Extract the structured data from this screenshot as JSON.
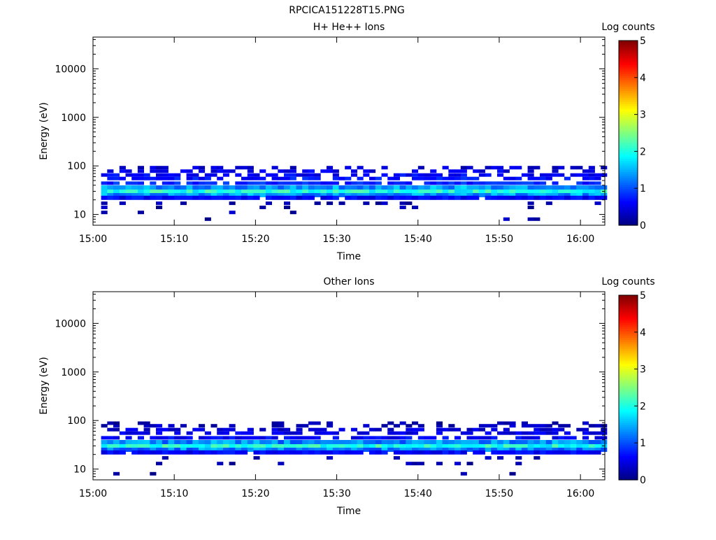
{
  "figure_title": "RPCICA151228T15.PNG",
  "chart_data": [
    {
      "type": "heatmap",
      "title": "H+ He++ Ions",
      "xlabel": "Time",
      "ylabel": "Energy (eV)",
      "x_range": [
        "15:00",
        "16:03"
      ],
      "x_ticks": [
        "15:00",
        "15:10",
        "15:20",
        "15:30",
        "15:40",
        "15:50",
        "16:00"
      ],
      "y_scale": "log",
      "y_range": [
        6,
        45000
      ],
      "y_ticks": [
        "10",
        "100",
        "1000",
        "10000"
      ],
      "colorbar": {
        "label": "Log counts",
        "range": [
          0,
          5
        ],
        "ticks": [
          "0",
          "1",
          "2",
          "3",
          "4",
          "5"
        ]
      },
      "bands": [
        {
          "energy_eV": 30,
          "log_counts": 2.0,
          "coverage": 1.0
        },
        {
          "energy_eV": 25,
          "log_counts": 1.4,
          "coverage": 1.0
        },
        {
          "energy_eV": 36,
          "log_counts": 1.4,
          "coverage": 1.0
        },
        {
          "energy_eV": 22,
          "log_counts": 0.6,
          "coverage": 0.95
        },
        {
          "energy_eV": 44,
          "log_counts": 0.8,
          "coverage": 0.85
        },
        {
          "energy_eV": 55,
          "log_counts": 0.7,
          "coverage": 0.7
        },
        {
          "energy_eV": 65,
          "log_counts": 0.6,
          "coverage": 0.6
        },
        {
          "energy_eV": 78,
          "log_counts": 0.5,
          "coverage": 0.5
        },
        {
          "energy_eV": 92,
          "log_counts": 0.4,
          "coverage": 0.4
        },
        {
          "energy_eV": 17,
          "log_counts": 0.2,
          "coverage": 0.18
        },
        {
          "energy_eV": 14,
          "log_counts": 0.2,
          "coverage": 0.12
        },
        {
          "energy_eV": 11,
          "log_counts": 0.2,
          "coverage": 0.08
        },
        {
          "energy_eV": 8,
          "log_counts": 0.2,
          "coverage": 0.05
        }
      ]
    },
    {
      "type": "heatmap",
      "title": "Other Ions",
      "xlabel": "Time",
      "ylabel": "Energy (eV)",
      "x_range": [
        "15:00",
        "16:03"
      ],
      "x_ticks": [
        "15:00",
        "15:10",
        "15:20",
        "15:30",
        "15:40",
        "15:50",
        "16:00"
      ],
      "y_scale": "log",
      "y_range": [
        6,
        45000
      ],
      "y_ticks": [
        "10",
        "100",
        "1000",
        "10000"
      ],
      "colorbar": {
        "label": "Log counts",
        "range": [
          0,
          5
        ],
        "ticks": [
          "0",
          "1",
          "2",
          "3",
          "4",
          "5"
        ]
      },
      "bands": [
        {
          "energy_eV": 30,
          "log_counts": 2.0,
          "coverage": 1.0
        },
        {
          "energy_eV": 25,
          "log_counts": 1.3,
          "coverage": 1.0
        },
        {
          "energy_eV": 36,
          "log_counts": 1.3,
          "coverage": 1.0
        },
        {
          "energy_eV": 22,
          "log_counts": 0.6,
          "coverage": 0.9
        },
        {
          "energy_eV": 44,
          "log_counts": 0.6,
          "coverage": 0.75
        },
        {
          "energy_eV": 55,
          "log_counts": 0.5,
          "coverage": 0.6
        },
        {
          "energy_eV": 65,
          "log_counts": 0.4,
          "coverage": 0.55
        },
        {
          "energy_eV": 78,
          "log_counts": 0.3,
          "coverage": 0.45
        },
        {
          "energy_eV": 88,
          "log_counts": 0.2,
          "coverage": 0.2
        },
        {
          "energy_eV": 17,
          "log_counts": 0.2,
          "coverage": 0.12
        },
        {
          "energy_eV": 13,
          "log_counts": 0.2,
          "coverage": 0.08
        },
        {
          "energy_eV": 8,
          "log_counts": 0.2,
          "coverage": 0.04
        }
      ]
    }
  ]
}
